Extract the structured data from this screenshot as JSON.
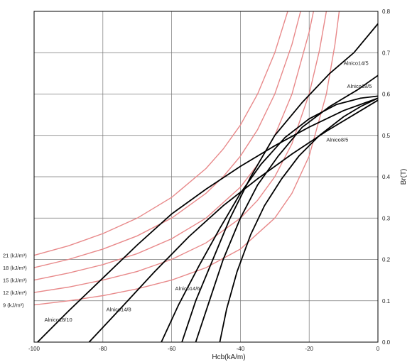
{
  "chart_data": {
    "type": "line",
    "title": "",
    "xlabel": "Hcb(kA/m)",
    "ylabel": "Br(T)",
    "xlim": [
      -100,
      0
    ],
    "ylim": [
      0,
      0.8
    ],
    "x_ticks": [
      -100,
      -80,
      -60,
      -40,
      -20,
      0
    ],
    "y_ticks": [
      0.0,
      0.1,
      0.2,
      0.3,
      0.4,
      0.5,
      0.6,
      0.7,
      0.8
    ],
    "x_tick_labels": [
      "-100",
      "-80",
      "-60",
      "-40",
      "-20",
      "0"
    ],
    "y_tick_labels": [
      "0.0",
      "0.1",
      "0.2",
      "0.3",
      "0.4",
      "0.5",
      "0.6",
      "0.7",
      "0.8"
    ],
    "grid": true,
    "energy_color": "#e8898a",
    "curve_color": "#000000",
    "energy_curves": [
      {
        "label": "21 (kJ/m³)",
        "label_y": 0.21,
        "points": [
          [
            -100,
            0.21
          ],
          [
            -90,
            0.233
          ],
          [
            -80,
            0.2625
          ],
          [
            -70,
            0.3
          ],
          [
            -60,
            0.35
          ],
          [
            -50,
            0.42
          ],
          [
            -45,
            0.467
          ],
          [
            -40,
            0.525
          ],
          [
            -35,
            0.6
          ],
          [
            -30,
            0.7
          ],
          [
            -26.25,
            0.8
          ]
        ]
      },
      {
        "label": "18 (kJ/m³)",
        "label_y": 0.18,
        "points": [
          [
            -100,
            0.18
          ],
          [
            -90,
            0.2
          ],
          [
            -80,
            0.225
          ],
          [
            -70,
            0.257
          ],
          [
            -60,
            0.3
          ],
          [
            -50,
            0.36
          ],
          [
            -45,
            0.4
          ],
          [
            -40,
            0.45
          ],
          [
            -35,
            0.514
          ],
          [
            -30,
            0.6
          ],
          [
            -25,
            0.72
          ],
          [
            -22.5,
            0.8
          ]
        ]
      },
      {
        "label": "15 (kJ/m³)",
        "label_y": 0.15,
        "points": [
          [
            -100,
            0.15
          ],
          [
            -90,
            0.167
          ],
          [
            -80,
            0.1875
          ],
          [
            -70,
            0.214
          ],
          [
            -60,
            0.25
          ],
          [
            -50,
            0.3
          ],
          [
            -40,
            0.375
          ],
          [
            -35,
            0.429
          ],
          [
            -30,
            0.5
          ],
          [
            -25,
            0.6
          ],
          [
            -20,
            0.75
          ],
          [
            -18.75,
            0.8
          ]
        ]
      },
      {
        "label": "12 (kJ/m³)",
        "label_y": 0.12,
        "points": [
          [
            -100,
            0.12
          ],
          [
            -90,
            0.133
          ],
          [
            -80,
            0.15
          ],
          [
            -70,
            0.171
          ],
          [
            -60,
            0.2
          ],
          [
            -50,
            0.24
          ],
          [
            -40,
            0.3
          ],
          [
            -35,
            0.343
          ],
          [
            -30,
            0.4
          ],
          [
            -25,
            0.48
          ],
          [
            -20,
            0.6
          ],
          [
            -17,
            0.706
          ],
          [
            -15,
            0.8
          ]
        ]
      },
      {
        "label": "9 (kJ/m³)",
        "label_y": 0.09,
        "points": [
          [
            -100,
            0.09
          ],
          [
            -90,
            0.1
          ],
          [
            -80,
            0.1125
          ],
          [
            -70,
            0.129
          ],
          [
            -60,
            0.15
          ],
          [
            -50,
            0.18
          ],
          [
            -40,
            0.225
          ],
          [
            -30,
            0.3
          ],
          [
            -25,
            0.36
          ],
          [
            -20,
            0.45
          ],
          [
            -15,
            0.6
          ],
          [
            -12.5,
            0.72
          ],
          [
            -11.25,
            0.8
          ]
        ]
      }
    ],
    "series": [
      {
        "name": "Alnico18/10",
        "label_x": -97,
        "label_y": 0.05,
        "points": [
          [
            -99,
            0
          ],
          [
            -90,
            0.075
          ],
          [
            -80,
            0.155
          ],
          [
            -70,
            0.235
          ],
          [
            -60,
            0.31
          ],
          [
            -50,
            0.37
          ],
          [
            -40,
            0.425
          ],
          [
            -30,
            0.475
          ],
          [
            -20,
            0.52
          ],
          [
            -10,
            0.56
          ],
          [
            0,
            0.59
          ]
        ]
      },
      {
        "name": "Alnico14/8",
        "label_x": -79,
        "label_y": 0.075,
        "points": [
          [
            -84,
            0
          ],
          [
            -75,
            0.08
          ],
          [
            -65,
            0.17
          ],
          [
            -55,
            0.255
          ],
          [
            -45,
            0.33
          ],
          [
            -35,
            0.395
          ],
          [
            -25,
            0.455
          ],
          [
            -15,
            0.51
          ],
          [
            -5,
            0.56
          ],
          [
            0,
            0.585
          ]
        ]
      },
      {
        "name": "Alnico14/6",
        "label_x": -59,
        "label_y": 0.125,
        "points": [
          [
            -63,
            0
          ],
          [
            -58,
            0.09
          ],
          [
            -52,
            0.185
          ],
          [
            -46,
            0.275
          ],
          [
            -40,
            0.36
          ],
          [
            -34,
            0.43
          ],
          [
            -27,
            0.495
          ],
          [
            -20,
            0.54
          ],
          [
            -12,
            0.575
          ],
          [
            -5,
            0.59
          ],
          [
            0,
            0.595
          ]
        ]
      },
      {
        "name": "Alnico8/5",
        "label_x": -15,
        "label_y": 0.485,
        "points": [
          [
            -46,
            0
          ],
          [
            -44,
            0.08
          ],
          [
            -41,
            0.17
          ],
          [
            -37,
            0.26
          ],
          [
            -33,
            0.33
          ],
          [
            -28,
            0.395
          ],
          [
            -23,
            0.45
          ],
          [
            -17,
            0.5
          ],
          [
            -10,
            0.545
          ],
          [
            -5,
            0.57
          ],
          [
            0,
            0.59
          ]
        ]
      },
      {
        "name": "Alnico14/5",
        "label_x": -10,
        "label_y": 0.67,
        "points": [
          [
            -57,
            0
          ],
          [
            -53,
            0.1
          ],
          [
            -48,
            0.2
          ],
          [
            -43,
            0.3
          ],
          [
            -37,
            0.4
          ],
          [
            -30,
            0.5
          ],
          [
            -22,
            0.58
          ],
          [
            -14,
            0.65
          ],
          [
            -7,
            0.7
          ],
          [
            0,
            0.77
          ]
        ]
      },
      {
        "name": "Alnico18/5",
        "label_x": -9,
        "label_y": 0.615,
        "points": [
          [
            -53,
            0
          ],
          [
            -49,
            0.1
          ],
          [
            -45,
            0.2
          ],
          [
            -40,
            0.3
          ],
          [
            -35,
            0.38
          ],
          [
            -29,
            0.45
          ],
          [
            -22,
            0.52
          ],
          [
            -14,
            0.57
          ],
          [
            -6,
            0.61
          ],
          [
            0,
            0.645
          ]
        ]
      }
    ]
  }
}
